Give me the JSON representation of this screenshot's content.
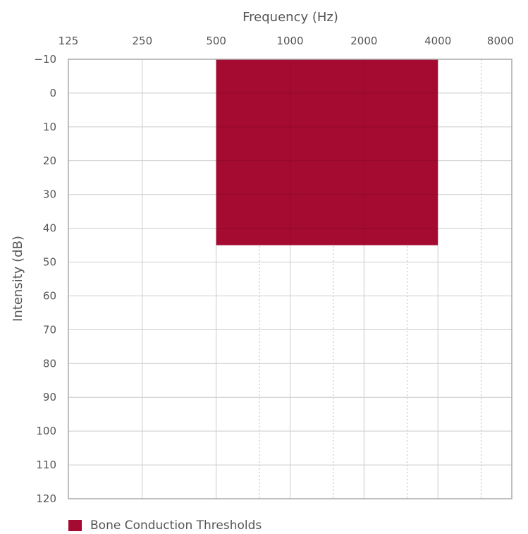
{
  "chart_data": {
    "type": "area",
    "xlabel": "Frequency (Hz)",
    "ylabel": "Intensity (dB)",
    "x_ticks": [
      "125",
      "250",
      "500",
      "1000",
      "2000",
      "4000",
      "8000"
    ],
    "x_scale": "log2",
    "x_axis_position": "top",
    "y_ticks": [
      -10,
      0,
      10,
      20,
      30,
      40,
      50,
      60,
      70,
      80,
      90,
      100,
      110,
      120
    ],
    "ylim": [
      -10,
      120
    ],
    "y_inverted": true,
    "grid": true,
    "dotted_minor_x": [
      "750",
      "1500",
      "3000",
      "6000"
    ],
    "series": [
      {
        "name": "Bone Conduction Thresholds",
        "x_range": [
          500,
          4000
        ],
        "y_range": [
          -10,
          45
        ],
        "color": "#a50b30"
      }
    ],
    "legend_position": "bottom-left"
  }
}
